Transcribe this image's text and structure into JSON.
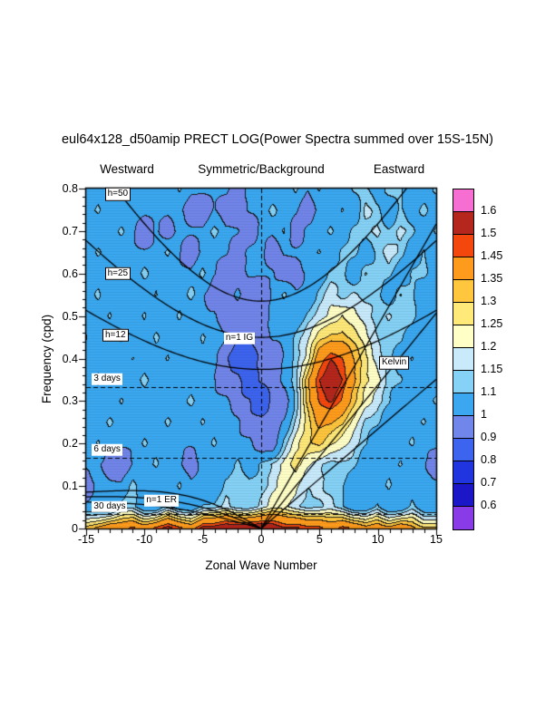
{
  "title": "eul64x128_d50amip PRECT LOG(Power Spectra summed over 15S-15N)",
  "region_labels": {
    "westward": "Westward",
    "center": "Symmetric/Background",
    "eastward": "Eastward"
  },
  "chart_data": {
    "type": "heatmap",
    "title": "eul64x128_d50amip PRECT LOG(Power Spectra summed over 15S-15N)",
    "xlabel": "Zonal Wave Number",
    "ylabel": "Frequency (cpd)",
    "xlim": [
      -15,
      15
    ],
    "ylim": [
      0,
      0.8
    ],
    "x_ticks": [
      "-15",
      "-10",
      "-5",
      "0",
      "5",
      "10",
      "15"
    ],
    "y_ticks": [
      "0",
      "0.1",
      "0.2",
      "0.3",
      "0.4",
      "0.5",
      "0.6",
      "0.7",
      "0.8"
    ],
    "levels": [
      0.6,
      0.7,
      0.8,
      0.9,
      1,
      1.1,
      1.15,
      1.2,
      1.25,
      1.3,
      1.35,
      1.45,
      1.5,
      1.6
    ],
    "colors": [
      "#8a3be8",
      "#1b16c8",
      "#2034e0",
      "#3d64ee",
      "#7186ea",
      "#3aa7f0",
      "#85d2f6",
      "#c8eafb",
      "#ffffc6",
      "#ffe979",
      "#ffc63e",
      "#ff9b1c",
      "#f4470e",
      "#b5271c",
      "#f76ed3"
    ],
    "grid": {
      "x_start": -15,
      "x_step": 1,
      "y_start": 0,
      "y_step": 0.05,
      "values": [
        [
          1.3,
          1.35,
          1.4,
          1.4,
          1.45,
          1.4,
          1.45,
          1.5,
          1.45,
          1.4,
          1.5,
          1.5,
          1.55,
          1.55,
          1.55,
          1.55,
          1.55,
          1.5,
          1.5,
          1.45,
          1.45,
          1.4,
          1.45,
          1.4,
          1.35,
          1.4,
          1.35,
          1.4,
          1.35,
          1.3,
          1.3
        ],
        [
          1.0,
          1.0,
          1.0,
          1.1,
          1.1,
          1.0,
          1.0,
          1.1,
          1.0,
          1.0,
          1.1,
          1.1,
          1.15,
          1.1,
          1.1,
          1.15,
          1.2,
          1.2,
          1.15,
          1.1,
          1.1,
          1.15,
          1.1,
          1.0,
          1.0,
          1.1,
          1.0,
          1.0,
          1.1,
          1.0,
          1.0
        ],
        [
          0.9,
          1.0,
          1.0,
          1.0,
          1.1,
          1.0,
          1.0,
          1.0,
          1.1,
          1.0,
          1.0,
          1.0,
          1.1,
          1.1,
          1.1,
          1.1,
          1.15,
          1.2,
          1.2,
          1.15,
          1.15,
          1.1,
          1.1,
          1.0,
          1.0,
          1.0,
          1.1,
          1.0,
          1.0,
          1.0,
          1.0
        ],
        [
          1.0,
          1.0,
          0.9,
          0.9,
          1.0,
          1.0,
          1.1,
          1.0,
          1.0,
          0.9,
          1.0,
          1.0,
          1.0,
          1.1,
          1.0,
          1.1,
          1.15,
          1.2,
          1.25,
          1.2,
          1.15,
          1.1,
          1.1,
          1.1,
          1.0,
          1.0,
          1.0,
          1.1,
          1.0,
          1.0,
          0.9
        ],
        [
          1.0,
          1.1,
          1.0,
          1.0,
          1.0,
          1.1,
          1.0,
          1.0,
          1.0,
          1.0,
          1.0,
          1.1,
          1.0,
          1.0,
          1.0,
          0.9,
          0.9,
          1.1,
          1.2,
          1.25,
          1.3,
          1.25,
          1.2,
          1.15,
          1.1,
          1.0,
          1.0,
          1.0,
          1.1,
          1.0,
          1.0
        ],
        [
          1.0,
          1.0,
          1.1,
          1.0,
          1.0,
          1.0,
          1.0,
          1.1,
          1.0,
          1.0,
          1.1,
          1.0,
          1.0,
          1.0,
          0.9,
          0.9,
          0.9,
          1.0,
          1.15,
          1.25,
          1.35,
          1.35,
          1.3,
          1.2,
          1.1,
          1.1,
          1.0,
          1.0,
          1.0,
          1.1,
          1.0
        ],
        [
          1.0,
          1.0,
          1.0,
          1.1,
          1.0,
          1.0,
          1.0,
          1.0,
          1.0,
          1.1,
          1.0,
          1.0,
          1.0,
          0.9,
          0.9,
          0.8,
          0.9,
          0.9,
          1.1,
          1.3,
          1.42,
          1.48,
          1.42,
          1.3,
          1.2,
          1.15,
          1.1,
          1.0,
          1.0,
          1.0,
          1.1
        ],
        [
          1.0,
          1.1,
          1.0,
          1.0,
          1.0,
          1.1,
          1.0,
          1.0,
          1.0,
          1.0,
          1.0,
          1.0,
          0.9,
          0.9,
          0.8,
          0.9,
          0.9,
          1.0,
          1.1,
          1.32,
          1.48,
          1.55,
          1.48,
          1.36,
          1.25,
          1.2,
          1.1,
          1.1,
          1.0,
          1.0,
          1.0
        ],
        [
          1.0,
          1.0,
          1.0,
          1.0,
          1.1,
          1.0,
          1.0,
          1.1,
          1.0,
          1.0,
          1.0,
          1.0,
          0.9,
          0.8,
          0.8,
          0.9,
          0.9,
          1.0,
          1.1,
          1.2,
          1.4,
          1.48,
          1.42,
          1.32,
          1.25,
          1.15,
          1.1,
          1.0,
          1.1,
          1.0,
          1.0
        ],
        [
          1.1,
          1.0,
          1.0,
          1.1,
          1.0,
          1.0,
          1.1,
          1.0,
          1.0,
          1.0,
          1.1,
          1.0,
          1.0,
          0.9,
          0.9,
          0.9,
          1.0,
          1.0,
          1.1,
          1.15,
          1.25,
          1.3,
          1.3,
          1.25,
          1.2,
          1.15,
          1.1,
          1.1,
          1.0,
          1.0,
          1.0
        ],
        [
          1.0,
          1.0,
          1.1,
          1.0,
          1.0,
          1.1,
          1.0,
          1.0,
          1.1,
          1.0,
          1.0,
          1.0,
          0.9,
          0.9,
          0.9,
          0.9,
          1.0,
          1.0,
          1.0,
          1.1,
          1.15,
          1.2,
          1.25,
          1.2,
          1.15,
          1.1,
          1.15,
          1.1,
          1.1,
          1.0,
          1.0
        ],
        [
          1.0,
          1.1,
          1.0,
          1.0,
          1.0,
          1.0,
          1.1,
          1.0,
          1.0,
          1.1,
          1.0,
          0.9,
          0.9,
          1.0,
          0.9,
          0.9,
          1.0,
          1.1,
          1.0,
          1.0,
          1.1,
          1.15,
          1.1,
          1.15,
          1.1,
          1.1,
          1.0,
          1.15,
          1.1,
          1.0,
          1.0
        ],
        [
          1.0,
          1.0,
          1.0,
          1.1,
          1.0,
          1.1,
          1.0,
          1.0,
          1.0,
          1.0,
          1.1,
          1.0,
          0.9,
          0.9,
          1.0,
          1.0,
          1.0,
          0.9,
          0.9,
          1.0,
          1.0,
          1.1,
          1.1,
          1.0,
          1.15,
          1.1,
          1.1,
          1.0,
          1.1,
          1.1,
          1.0
        ],
        [
          1.0,
          1.1,
          1.0,
          1.0,
          1.0,
          1.0,
          1.0,
          1.1,
          1.0,
          0.9,
          1.0,
          1.0,
          1.0,
          0.9,
          1.0,
          1.0,
          0.9,
          1.0,
          1.0,
          1.0,
          1.1,
          1.0,
          1.1,
          1.1,
          1.0,
          1.1,
          1.15,
          1.1,
          1.0,
          1.1,
          1.0
        ],
        [
          1.0,
          1.0,
          1.0,
          1.1,
          1.0,
          0.9,
          1.0,
          0.9,
          1.0,
          1.0,
          1.0,
          1.1,
          1.0,
          1.0,
          0.9,
          1.0,
          1.0,
          1.1,
          0.9,
          1.0,
          1.0,
          1.1,
          1.0,
          1.1,
          1.1,
          1.15,
          1.1,
          1.15,
          1.1,
          1.0,
          1.1
        ],
        [
          1.0,
          1.1,
          1.0,
          1.0,
          1.0,
          1.0,
          1.0,
          1.0,
          1.0,
          0.9,
          0.9,
          1.0,
          0.9,
          0.9,
          1.0,
          1.0,
          1.1,
          1.0,
          1.0,
          0.9,
          1.0,
          1.0,
          1.1,
          1.0,
          1.15,
          1.1,
          1.0,
          1.1,
          1.0,
          1.1,
          1.0
        ],
        [
          1.0,
          1.0,
          1.1,
          1.1,
          1.0,
          1.0,
          1.0,
          1.0,
          1.1,
          1.0,
          1.0,
          1.0,
          1.0,
          0.9,
          1.0,
          1.0,
          1.0,
          1.0,
          1.1,
          1.0,
          1.1,
          1.0,
          1.0,
          1.1,
          1.1,
          1.0,
          1.1,
          1.1,
          1.0,
          1.0,
          1.1
        ]
      ]
    },
    "dispersion": {
      "equivalent_depths_m": [
        12,
        25,
        50
      ],
      "curve_types": [
        "kelvin",
        "n1_equatorial_rossby",
        "n1_inertia_gravity"
      ]
    },
    "period_lines": [
      {
        "period_days": 3,
        "frequency_cpd": 0.3333
      },
      {
        "period_days": 6,
        "frequency_cpd": 0.1667
      },
      {
        "period_days": 30,
        "frequency_cpd": 0.0333
      }
    ],
    "annotations": [
      {
        "label": "h=50",
        "x": -13.4,
        "y": 0.787,
        "boxed": true
      },
      {
        "label": "h=25",
        "x": -13.4,
        "y": 0.6,
        "boxed": true
      },
      {
        "label": "h=12",
        "x": -13.6,
        "y": 0.455,
        "boxed": true
      },
      {
        "label": "n=1 IG",
        "x": -3.2,
        "y": 0.447,
        "boxed": false
      },
      {
        "label": "Kelvin",
        "x": 10.1,
        "y": 0.39,
        "boxed": true
      },
      {
        "label": "n=1 ER",
        "x": -10.0,
        "y": 0.066,
        "boxed": false
      },
      {
        "label": "3 days",
        "x": -14.5,
        "y": 0.352,
        "boxed": false
      },
      {
        "label": "6 days",
        "x": -14.5,
        "y": 0.185,
        "boxed": false
      },
      {
        "label": "30 days",
        "x": -14.5,
        "y": 0.052,
        "boxed": false
      }
    ],
    "legend_position": "right"
  },
  "colorbar": {
    "labels": [
      "1.6",
      "1.5",
      "1.45",
      "1.35",
      "1.3",
      "1.25",
      "1.2",
      "1.15",
      "1.1",
      "1",
      "0.9",
      "0.8",
      "0.7",
      "0.6"
    ]
  }
}
